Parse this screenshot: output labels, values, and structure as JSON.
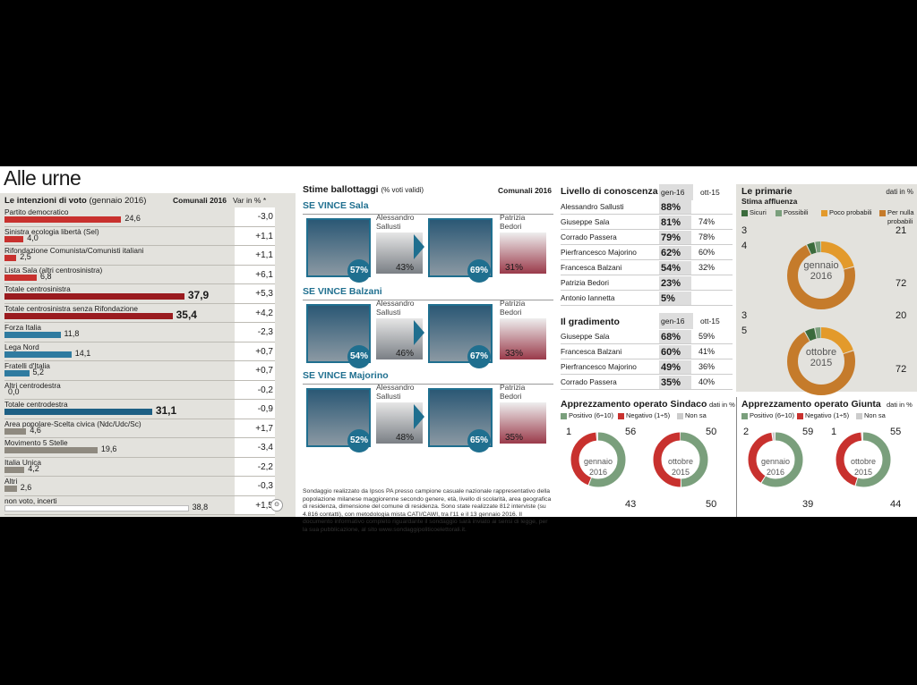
{
  "title": "Alle urne",
  "intenzioni": {
    "title": "Le intenzioni di voto",
    "subtitle": "(gennaio 2016)",
    "col1": "Comunali 2016",
    "col2": "Var in % *"
  },
  "ballottaggi": {
    "title": "Stime ballottaggi",
    "subtitle": "(% voti validi)",
    "col": "Comunali 2016",
    "note": "Sondaggio realizzato da Ipsos PA presso campione casuale nazionale rappresentativo della popolazione milanese maggiorenne secondo genere, età, livello di scolarità, area geografica di residenza, dimensione del comune di residenza. Sono state realizzate 812 interviste (su 4.816 contatti), con metodologia mista CATI/CAWI, tra l'11 e il 13 gennaio 2016. Il documento informativo completo riguardante il sondaggio sarà inviato ai sensi di legge, per la sua pubblicazione, al sito www.sondaggipoliticoelettorali.it.",
    "sections": [
      {
        "label": "SE VINCE Sala",
        "a": {
          "pct": "57%"
        },
        "b_name1": "Alessandro",
        "b_name2": "Sallusti",
        "b_pct": "43%",
        "c": {
          "pct": "69%"
        },
        "d_name1": "Patrizia",
        "d_name2": "Bedori",
        "d_pct": "31%"
      },
      {
        "label": "SE VINCE Balzani",
        "a": {
          "pct": "54%"
        },
        "b_name1": "Alessandro",
        "b_name2": "Sallusti",
        "b_pct": "46%",
        "c": {
          "pct": "67%"
        },
        "d_name1": "Patrizia",
        "d_name2": "Bedori",
        "d_pct": "33%"
      },
      {
        "label": "SE VINCE Majorino",
        "a": {
          "pct": "52%"
        },
        "b_name1": "Alessandro",
        "b_name2": "Sallusti",
        "b_pct": "48%",
        "c": {
          "pct": "65%"
        },
        "d_name1": "Patrizia",
        "d_name2": "Bedori",
        "d_pct": "35%"
      }
    ]
  },
  "conoscenza": {
    "title": "Livello di conoscenza",
    "c1": "gen-16",
    "c2": "ott-15",
    "rows": [
      {
        "name": "Alessandro Sallusti",
        "v1": "88%",
        "v2": ""
      },
      {
        "name": "Giuseppe Sala",
        "v1": "81%",
        "v2": "74%"
      },
      {
        "name": "Corrado Passera",
        "v1": "79%",
        "v2": "78%"
      },
      {
        "name": "Pierfrancesco Majorino",
        "v1": "62%",
        "v2": "60%"
      },
      {
        "name": "Francesca Balzani",
        "v1": "54%",
        "v2": "32%"
      },
      {
        "name": "Patrizia Bedori",
        "v1": "23%",
        "v2": ""
      },
      {
        "name": "Antonio Iannetta",
        "v1": "5%",
        "v2": ""
      }
    ]
  },
  "gradimento": {
    "title": "Il gradimento",
    "c1": "gen-16",
    "c2": "ott-15",
    "rows": [
      {
        "name": "Giuseppe Sala",
        "v1": "68%",
        "v2": "59%"
      },
      {
        "name": "Francesca Balzani",
        "v1": "60%",
        "v2": "41%"
      },
      {
        "name": "Pierfrancesco Majorino",
        "v1": "49%",
        "v2": "36%"
      },
      {
        "name": "Corrado Passera",
        "v1": "35%",
        "v2": "40%"
      }
    ]
  },
  "primarie": {
    "title": "Le primarie",
    "subtitle": "Stima affluenza",
    "unit": "dati in %",
    "legend": [
      "Sicuri",
      "Possibili",
      "Poco probabili",
      "Per nulla probabili"
    ],
    "donut1": {
      "center1": "gennaio",
      "center2": "2016",
      "l1": "3",
      "l2": "4",
      "r1": "21",
      "r2": "72"
    },
    "donut2": {
      "center1": "ottobre",
      "center2": "2015",
      "l1": "3",
      "l2": "5",
      "r1": "20",
      "r2": "72"
    }
  },
  "sindaco": {
    "title": "Apprezzamento operato Sindaco",
    "unit": "dati in %",
    "legend": [
      "Positivo (6÷10)",
      "Negativo (1÷5)",
      "Non sa"
    ],
    "d1": {
      "c1": "gennaio",
      "c2": "2016",
      "a": "1",
      "b": "56",
      "c": "43"
    },
    "d2": {
      "c1": "ottobre",
      "c2": "2015",
      "a": "50",
      "c": "50"
    }
  },
  "giunta": {
    "title": "Apprezzamento operato Giunta",
    "unit": "dati in %",
    "legend": [
      "Positivo (6÷10)",
      "Negativo (1÷5)",
      "Non sa"
    ],
    "d1": {
      "c1": "gennaio",
      "c2": "2016",
      "a": "2",
      "b": "59",
      "c": "39"
    },
    "d2": {
      "c1": "ottobre",
      "c2": "2015",
      "a": "1",
      "b": "55",
      "c": "44"
    }
  },
  "colors": {
    "red": "#c8312e",
    "darkred": "#9a1b1f",
    "blue": "#2f7ba0",
    "navy": "#1d5f84",
    "grey": "#8f8a80",
    "green_dark": "#3b6b3c",
    "green": "#7a9f7c",
    "orange": "#e39a2b",
    "brown": "#c57b2b",
    "teal": "#1f6f8f"
  },
  "chart_data": [
    {
      "type": "bar",
      "title": "Le intenzioni di voto",
      "categories": [
        "Partito democratico",
        "Sinistra ecologia libertà (Sel)",
        "Rifondazione Comunista/Comunisti italiani",
        "Lista Sala (altri centrosinistra)",
        "Totale centrosinistra",
        "Totale centrosinistra senza Rifondazione",
        "Forza Italia",
        "Lega Nord",
        "Fratelli d'Italia",
        "Altri centrodestra",
        "Totale centrodestra",
        "Area popolare-Scelta civica (Ndc/Udc/Sc)",
        "Movimento 5 Stelle",
        "Italia Unica",
        "Altri",
        "non voto, incerti"
      ],
      "values": [
        24.6,
        4.0,
        2.5,
        6.8,
        37.9,
        35.4,
        11.8,
        14.1,
        5.2,
        0.0,
        31.1,
        4.6,
        19.6,
        4.2,
        2.6,
        38.8
      ],
      "value_labels": [
        "24,6",
        "4,0",
        "2,5",
        "6,8",
        "37,9",
        "35,4",
        "11,8",
        "14,1",
        "5,2",
        "0,0",
        "31,1",
        "4,6",
        "19,6",
        "4,2",
        "2,6",
        "38,8"
      ],
      "var_labels": [
        "-3,0",
        "+1,1",
        "+1,1",
        "+6,1",
        "+5,3",
        "+4,2",
        "-2,3",
        "+0,7",
        "+0,7",
        "-0,2",
        "-0,9",
        "+1,7",
        "-3,4",
        "-2,2",
        "-0,3",
        "+1,5"
      ],
      "color_keys": [
        "red",
        "red",
        "red",
        "red",
        "darkred",
        "darkred",
        "blue",
        "blue",
        "blue",
        "blue",
        "navy",
        "grey",
        "grey",
        "grey",
        "grey",
        "white"
      ]
    },
    {
      "type": "pie",
      "title": "Stima affluenza gennaio 2016",
      "categories": [
        "Sicuri",
        "Possibili",
        "Poco probabili",
        "Per nulla probabili"
      ],
      "values": [
        4,
        3,
        21,
        72
      ]
    },
    {
      "type": "pie",
      "title": "Stima affluenza ottobre 2015",
      "categories": [
        "Sicuri",
        "Possibili",
        "Poco probabili",
        "Per nulla probabili"
      ],
      "values": [
        5,
        3,
        20,
        72
      ]
    },
    {
      "type": "pie",
      "title": "Apprezzamento operato Sindaco gennaio 2016",
      "categories": [
        "Positivo (6÷10)",
        "Negativo (1÷5)",
        "Non sa"
      ],
      "values": [
        56,
        43,
        1
      ]
    },
    {
      "type": "pie",
      "title": "Apprezzamento operato Sindaco ottobre 2015",
      "categories": [
        "Positivo (6÷10)",
        "Negativo (1÷5)",
        "Non sa"
      ],
      "values": [
        50,
        50,
        0
      ]
    },
    {
      "type": "pie",
      "title": "Apprezzamento operato Giunta gennaio 2016",
      "categories": [
        "Positivo (6÷10)",
        "Negativo (1÷5)",
        "Non sa"
      ],
      "values": [
        59,
        39,
        2
      ]
    },
    {
      "type": "pie",
      "title": "Apprezzamento operato Giunta ottobre 2015",
      "categories": [
        "Positivo (6÷10)",
        "Negativo (1÷5)",
        "Non sa"
      ],
      "values": [
        55,
        44,
        1
      ]
    }
  ]
}
